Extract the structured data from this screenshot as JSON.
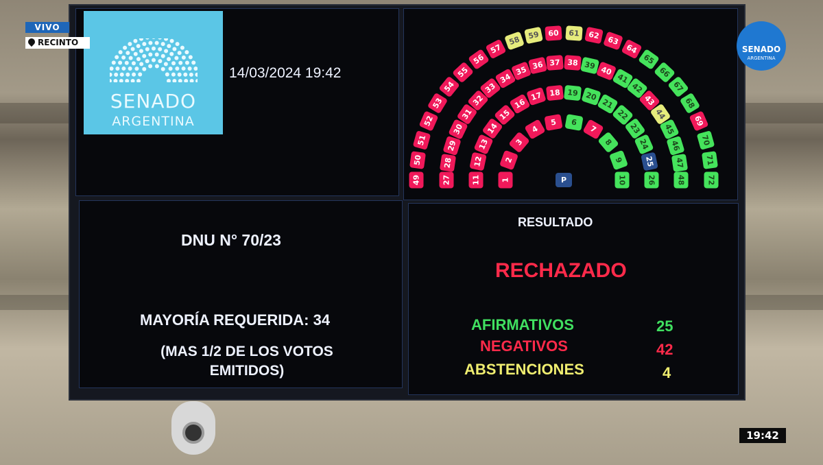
{
  "overlay": {
    "live_label": "VIVO",
    "location_label": "RECINTO",
    "clock": "19:42",
    "corner_logo": {
      "line1": "SENADO",
      "line2": "ARGENTINA"
    }
  },
  "board": {
    "logo": {
      "line1": "SENADO",
      "line2": "ARGENTINA"
    },
    "datetime": "14/03/2024  19:42",
    "motion": "DNU N° 70/23",
    "majority": "MAYORÍA REQUERIDA: 34",
    "majority_note_1": "(MAS 1/2 DE LOS VOTOS",
    "majority_note_2": "EMITIDOS)",
    "result_heading": "RESULTADO",
    "result": "RECHAZADO",
    "tally": [
      {
        "label": "AFIRMATIVOS",
        "count": "25",
        "color": "#40e060"
      },
      {
        "label": "NEGATIVOS",
        "count": "42",
        "color": "#ff2a4a"
      },
      {
        "label": "ABSTENCIONES",
        "count": "4",
        "color": "#f0ee70"
      }
    ],
    "president_label": "P",
    "vote_colors": {
      "neg": "#f0195a",
      "afi": "#45e35c",
      "abs": "#e6ec7c",
      "none": "#2a4f8f"
    },
    "seat_rows": [
      [
        [
          "1",
          "neg"
        ],
        [
          "2",
          "neg"
        ],
        [
          "3",
          "neg"
        ],
        [
          "4",
          "neg"
        ],
        [
          "5",
          "neg"
        ],
        [
          "6",
          "afi"
        ],
        [
          "7",
          "neg"
        ],
        [
          "8",
          "afi"
        ],
        [
          "9",
          "afi"
        ],
        [
          "10",
          "afi"
        ]
      ],
      [
        [
          "11",
          "neg"
        ],
        [
          "12",
          "neg"
        ],
        [
          "13",
          "neg"
        ],
        [
          "14",
          "neg"
        ],
        [
          "15",
          "neg"
        ],
        [
          "16",
          "neg"
        ],
        [
          "17",
          "neg"
        ],
        [
          "18",
          "neg"
        ],
        [
          "19",
          "afi"
        ],
        [
          "20",
          "afi"
        ],
        [
          "21",
          "afi"
        ],
        [
          "22",
          "afi"
        ],
        [
          "23",
          "afi"
        ],
        [
          "24",
          "afi"
        ],
        [
          "25",
          "none"
        ],
        [
          "26",
          "afi"
        ]
      ],
      [
        [
          "27",
          "neg"
        ],
        [
          "28",
          "neg"
        ],
        [
          "29",
          "neg"
        ],
        [
          "30",
          "neg"
        ],
        [
          "31",
          "neg"
        ],
        [
          "32",
          "neg"
        ],
        [
          "33",
          "neg"
        ],
        [
          "34",
          "neg"
        ],
        [
          "35",
          "neg"
        ],
        [
          "36",
          "neg"
        ],
        [
          "37",
          "neg"
        ],
        [
          "38",
          "neg"
        ],
        [
          "39",
          "afi"
        ],
        [
          "40",
          "neg"
        ],
        [
          "41",
          "afi"
        ],
        [
          "42",
          "afi"
        ],
        [
          "43",
          "neg"
        ],
        [
          "44",
          "abs"
        ],
        [
          "45",
          "afi"
        ],
        [
          "46",
          "afi"
        ],
        [
          "47",
          "afi"
        ],
        [
          "48",
          "afi"
        ]
      ],
      [
        [
          "49",
          "neg"
        ],
        [
          "50",
          "neg"
        ],
        [
          "51",
          "neg"
        ],
        [
          "52",
          "neg"
        ],
        [
          "53",
          "neg"
        ],
        [
          "54",
          "neg"
        ],
        [
          "55",
          "neg"
        ],
        [
          "56",
          "neg"
        ],
        [
          "57",
          "neg"
        ],
        [
          "58",
          "abs"
        ],
        [
          "59",
          "abs"
        ],
        [
          "60",
          "neg"
        ],
        [
          "61",
          "abs"
        ],
        [
          "62",
          "neg"
        ],
        [
          "63",
          "neg"
        ],
        [
          "64",
          "neg"
        ],
        [
          "65",
          "afi"
        ],
        [
          "66",
          "afi"
        ],
        [
          "67",
          "afi"
        ],
        [
          "68",
          "afi"
        ],
        [
          "69",
          "neg"
        ],
        [
          "70",
          "afi"
        ],
        [
          "71",
          "afi"
        ],
        [
          "72",
          "afi"
        ]
      ]
    ]
  }
}
